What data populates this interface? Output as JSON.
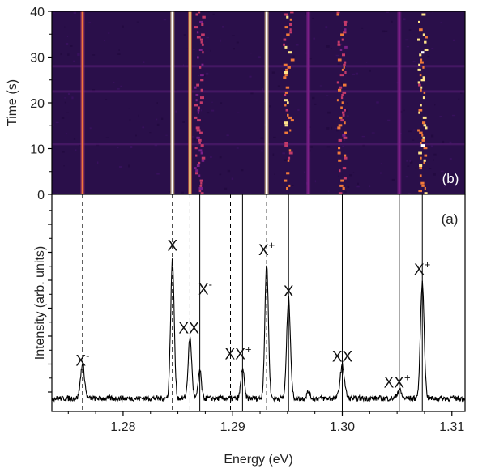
{
  "chart_data": [
    {
      "panel": "(b)",
      "type": "heatmap",
      "xlabel": "",
      "ylabel": "Time (s)",
      "xlim": [
        1.2735,
        1.3112
      ],
      "ylim": [
        0,
        40
      ],
      "y_ticks": [
        0,
        10,
        20,
        30,
        40
      ],
      "colormap": [
        "#12081e",
        "#3b1060",
        "#7a1f86",
        "#c43a6a",
        "#f07a3a",
        "#ffe48a",
        "#ffffff"
      ],
      "lines": [
        {
          "x": 1.2763,
          "intensity": 0.62,
          "blink": false
        },
        {
          "x": 1.2845,
          "intensity": 1.0,
          "blink": false
        },
        {
          "x": 1.2861,
          "intensity": 0.82,
          "blink": false
        },
        {
          "x": 1.287,
          "intensity": 0.5,
          "blink": true
        },
        {
          "x": 1.2931,
          "intensity": 0.95,
          "blink": false
        },
        {
          "x": 1.2951,
          "intensity": 0.75,
          "blink": true
        },
        {
          "x": 1.2969,
          "intensity": 0.35,
          "blink": false
        },
        {
          "x": 1.3,
          "intensity": 0.6,
          "blink": true
        },
        {
          "x": 1.3052,
          "intensity": 0.4,
          "blink": false
        },
        {
          "x": 1.3073,
          "intensity": 0.85,
          "blink": true
        }
      ]
    },
    {
      "panel": "(a)",
      "type": "line",
      "xlabel": "Energy (eV)",
      "ylabel": "Intensity (arb. units)",
      "xlim": [
        1.2735,
        1.3112
      ],
      "ylim": [
        0,
        1.0
      ],
      "x_ticks": [
        1.28,
        1.29,
        1.3,
        1.31
      ],
      "x_tick_labels": [
        "1.28",
        "1.29",
        "1.30",
        "1.31"
      ],
      "baseline": 0.06,
      "peaks": [
        {
          "x": 1.2763,
          "height": 0.16,
          "width": 0.00018
        },
        {
          "x": 1.2845,
          "height": 0.64,
          "width": 0.00016
        },
        {
          "x": 1.2861,
          "height": 0.28,
          "width": 0.00016
        },
        {
          "x": 1.287,
          "height": 0.13,
          "width": 0.00014
        },
        {
          "x": 1.2909,
          "height": 0.14,
          "width": 0.00015
        },
        {
          "x": 1.2931,
          "height": 0.62,
          "width": 0.00016
        },
        {
          "x": 1.2951,
          "height": 0.46,
          "width": 0.00017
        },
        {
          "x": 1.2969,
          "height": 0.03,
          "width": 0.00014
        },
        {
          "x": 1.3,
          "height": 0.15,
          "width": 0.0002
        },
        {
          "x": 1.3052,
          "height": 0.04,
          "width": 0.00018
        },
        {
          "x": 1.3073,
          "height": 0.53,
          "width": 0.00017
        }
      ],
      "guide_lines": [
        {
          "x": 1.2763,
          "style": "dashed"
        },
        {
          "x": 1.2845,
          "style": "dashed"
        },
        {
          "x": 1.2861,
          "style": "dashed"
        },
        {
          "x": 1.287,
          "style": "solid"
        },
        {
          "x": 1.2898,
          "style": "dashed"
        },
        {
          "x": 1.2909,
          "style": "solid"
        },
        {
          "x": 1.2931,
          "style": "dashed"
        },
        {
          "x": 1.2951,
          "style": "solid"
        },
        {
          "x": 1.3,
          "style": "solid"
        },
        {
          "x": 1.3052,
          "style": "solid"
        },
        {
          "x": 1.3073,
          "style": "solid"
        }
      ],
      "annotations": [
        {
          "base": "X",
          "sup": "-",
          "x": 1.2763,
          "y": 0.21
        },
        {
          "base": "X",
          "sup": "",
          "x": 1.2845,
          "y": 0.74
        },
        {
          "base": "XX",
          "sup": "",
          "x": 1.286,
          "y": 0.36
        },
        {
          "base": "X",
          "sup": "-",
          "x": 1.2875,
          "y": 0.54
        },
        {
          "base": "XX",
          "sup": "+",
          "x": 1.2905,
          "y": 0.24
        },
        {
          "base": "X",
          "sup": "+",
          "x": 1.2931,
          "y": 0.72
        },
        {
          "base": "X",
          "sup": "",
          "x": 1.2951,
          "y": 0.53
        },
        {
          "base": "XX",
          "sup": "",
          "x": 1.3,
          "y": 0.23
        },
        {
          "base": "XX",
          "sup": "+",
          "x": 1.305,
          "y": 0.11
        },
        {
          "base": "X",
          "sup": "+",
          "x": 1.3073,
          "y": 0.63
        }
      ]
    }
  ]
}
